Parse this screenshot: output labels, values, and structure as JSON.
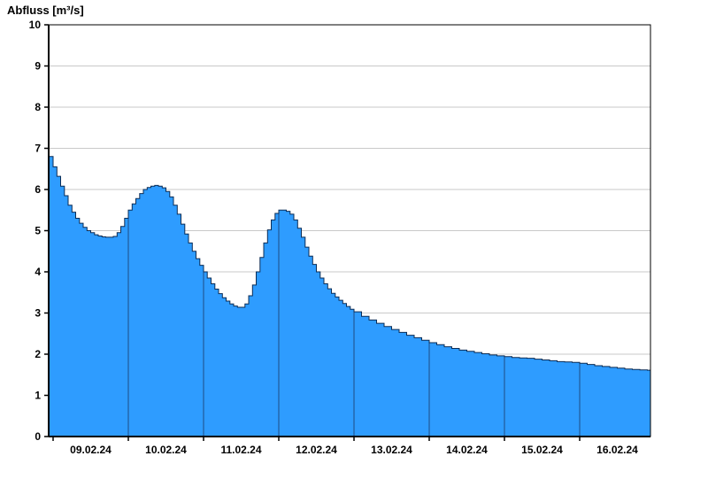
{
  "chart_data": {
    "type": "area",
    "title": "Abfluss [m³/s]",
    "ylabel": "Abfluss [m³/s]",
    "xlabel": "",
    "ylim": [
      0,
      10
    ],
    "y_ticks": [
      0,
      1,
      2,
      3,
      4,
      5,
      6,
      7,
      8,
      9,
      10
    ],
    "x_tick_labels": [
      "09.02.24",
      "10.02.24",
      "11.02.24",
      "12.02.24",
      "13.02.24",
      "14.02.24",
      "15.02.24",
      "16.02.24"
    ],
    "x_domain_days": [
      -0.06,
      7.94
    ],
    "grid": "horizontal",
    "legend": "none",
    "colors": {
      "fill": "#2E9CFF",
      "line": "#0b2c55",
      "day_separator": "#1c3f6e",
      "gridline": "#c9c9c9",
      "axis": "#000000",
      "label": "#000000"
    },
    "series": [
      {
        "name": "Abfluss",
        "unit": "m³/s",
        "points": [
          [
            -0.06,
            6.8
          ],
          [
            0,
            6.55
          ],
          [
            0.05,
            6.32
          ],
          [
            0.1,
            6.08
          ],
          [
            0.15,
            5.85
          ],
          [
            0.2,
            5.62
          ],
          [
            0.25,
            5.45
          ],
          [
            0.3,
            5.3
          ],
          [
            0.35,
            5.18
          ],
          [
            0.4,
            5.08
          ],
          [
            0.45,
            5.0
          ],
          [
            0.5,
            4.95
          ],
          [
            0.55,
            4.9
          ],
          [
            0.6,
            4.87
          ],
          [
            0.65,
            4.85
          ],
          [
            0.7,
            4.84
          ],
          [
            0.75,
            4.84
          ],
          [
            0.8,
            4.86
          ],
          [
            0.85,
            4.95
          ],
          [
            0.9,
            5.1
          ],
          [
            0.95,
            5.3
          ],
          [
            1.0,
            5.5
          ],
          [
            1.05,
            5.65
          ],
          [
            1.1,
            5.78
          ],
          [
            1.15,
            5.9
          ],
          [
            1.2,
            6.0
          ],
          [
            1.25,
            6.05
          ],
          [
            1.3,
            6.08
          ],
          [
            1.35,
            6.1
          ],
          [
            1.4,
            6.08
          ],
          [
            1.45,
            6.04
          ],
          [
            1.5,
            5.95
          ],
          [
            1.55,
            5.82
          ],
          [
            1.6,
            5.62
          ],
          [
            1.65,
            5.4
          ],
          [
            1.7,
            5.16
          ],
          [
            1.75,
            4.92
          ],
          [
            1.8,
            4.7
          ],
          [
            1.85,
            4.5
          ],
          [
            1.9,
            4.32
          ],
          [
            1.95,
            4.16
          ],
          [
            2.0,
            4.0
          ],
          [
            2.05,
            3.85
          ],
          [
            2.1,
            3.71
          ],
          [
            2.15,
            3.58
          ],
          [
            2.2,
            3.47
          ],
          [
            2.25,
            3.37
          ],
          [
            2.3,
            3.29
          ],
          [
            2.35,
            3.22
          ],
          [
            2.4,
            3.17
          ],
          [
            2.45,
            3.14
          ],
          [
            2.5,
            3.14
          ],
          [
            2.55,
            3.22
          ],
          [
            2.6,
            3.42
          ],
          [
            2.65,
            3.68
          ],
          [
            2.7,
            4.0
          ],
          [
            2.75,
            4.35
          ],
          [
            2.8,
            4.7
          ],
          [
            2.85,
            5.02
          ],
          [
            2.9,
            5.26
          ],
          [
            2.95,
            5.42
          ],
          [
            3.0,
            5.5
          ],
          [
            3.05,
            5.5
          ],
          [
            3.1,
            5.47
          ],
          [
            3.15,
            5.4
          ],
          [
            3.2,
            5.26
          ],
          [
            3.25,
            5.06
          ],
          [
            3.3,
            4.84
          ],
          [
            3.35,
            4.6
          ],
          [
            3.4,
            4.38
          ],
          [
            3.45,
            4.18
          ],
          [
            3.5,
            4.0
          ],
          [
            3.55,
            3.85
          ],
          [
            3.6,
            3.71
          ],
          [
            3.65,
            3.59
          ],
          [
            3.7,
            3.48
          ],
          [
            3.75,
            3.39
          ],
          [
            3.8,
            3.31
          ],
          [
            3.85,
            3.23
          ],
          [
            3.9,
            3.16
          ],
          [
            3.95,
            3.09
          ],
          [
            4.0,
            3.03
          ],
          [
            4.1,
            2.92
          ],
          [
            4.2,
            2.83
          ],
          [
            4.3,
            2.75
          ],
          [
            4.4,
            2.67
          ],
          [
            4.5,
            2.6
          ],
          [
            4.6,
            2.53
          ],
          [
            4.7,
            2.46
          ],
          [
            4.8,
            2.4
          ],
          [
            4.9,
            2.34
          ],
          [
            5.0,
            2.28
          ],
          [
            5.1,
            2.23
          ],
          [
            5.2,
            2.18
          ],
          [
            5.3,
            2.14
          ],
          [
            5.4,
            2.1
          ],
          [
            5.5,
            2.07
          ],
          [
            5.6,
            2.04
          ],
          [
            5.7,
            2.01
          ],
          [
            5.8,
            1.98
          ],
          [
            5.9,
            1.96
          ],
          [
            6.0,
            1.94
          ],
          [
            6.1,
            1.92
          ],
          [
            6.2,
            1.91
          ],
          [
            6.3,
            1.9
          ],
          [
            6.4,
            1.88
          ],
          [
            6.5,
            1.86
          ],
          [
            6.6,
            1.84
          ],
          [
            6.7,
            1.82
          ],
          [
            6.8,
            1.81
          ],
          [
            6.9,
            1.8
          ],
          [
            7.0,
            1.78
          ],
          [
            7.1,
            1.75
          ],
          [
            7.2,
            1.72
          ],
          [
            7.3,
            1.7
          ],
          [
            7.4,
            1.68
          ],
          [
            7.5,
            1.66
          ],
          [
            7.6,
            1.64
          ],
          [
            7.7,
            1.63
          ],
          [
            7.8,
            1.62
          ],
          [
            7.9,
            1.61
          ],
          [
            7.94,
            1.6
          ]
        ]
      }
    ]
  }
}
